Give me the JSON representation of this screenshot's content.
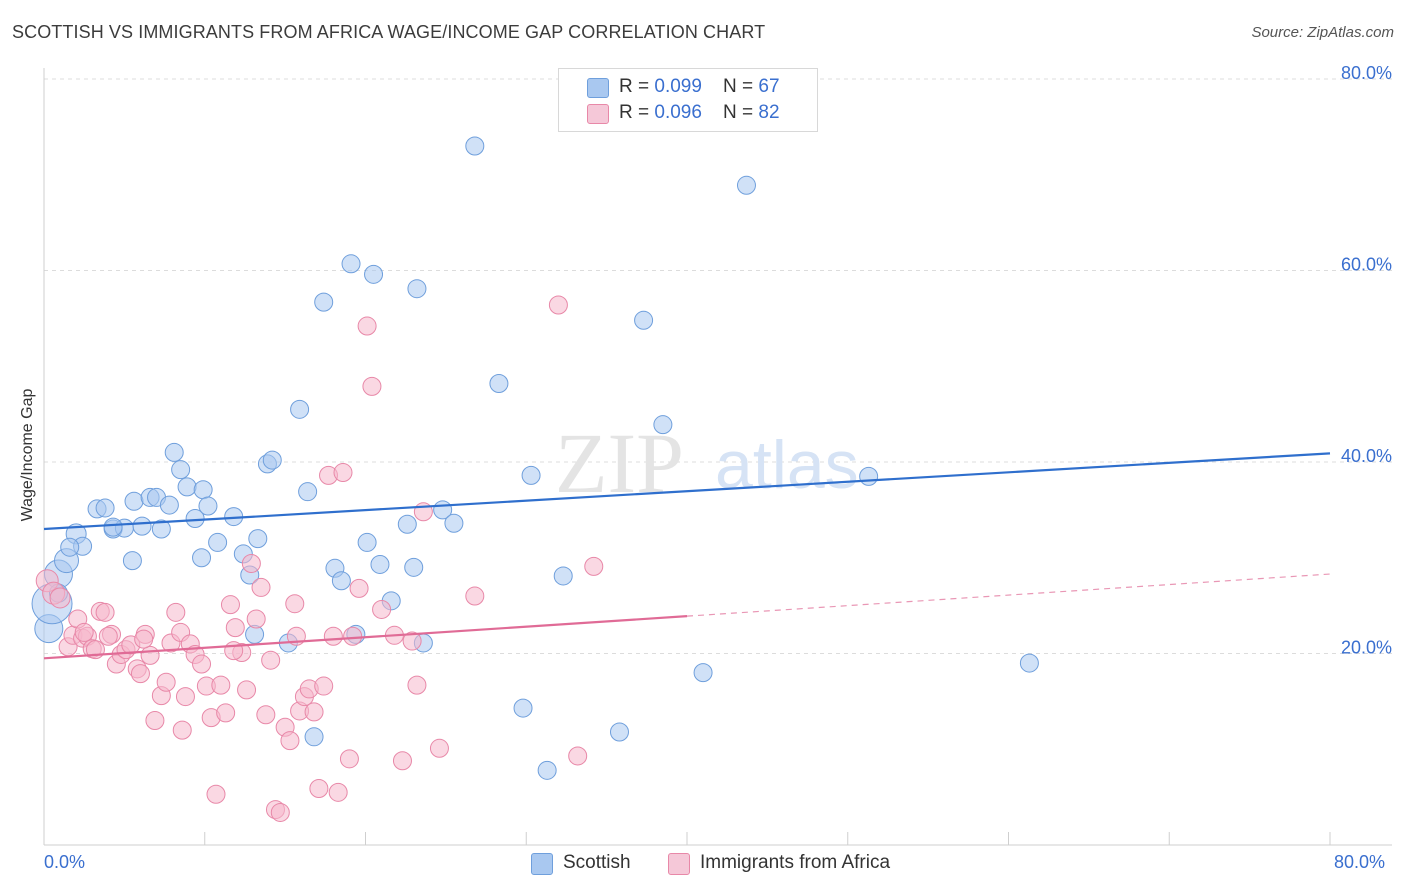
{
  "title": "SCOTTISH VS IMMIGRANTS FROM AFRICA WAGE/INCOME GAP CORRELATION CHART",
  "source": "Source: ZipAtlas.com",
  "watermark": {
    "zip": "ZIP",
    "atlas": "atlas"
  },
  "legend": {
    "series1": {
      "r_label": "R = ",
      "r_value": "0.099",
      "n_label": "N = ",
      "n_value": "67"
    },
    "series2": {
      "r_label": "R = ",
      "r_value": "0.096",
      "n_label": "N = ",
      "n_value": "82"
    }
  },
  "bottom_legend": [
    "Scottish",
    "Immigrants from Africa"
  ],
  "x_tick_labels": {
    "left": "0.0%",
    "right": "80.0%"
  },
  "colors": {
    "blue_fill": "#a9c8f0",
    "blue_stroke": "#6f9fdc",
    "blue_line": "#2f6fcd",
    "pink_fill": "#f5b8cc",
    "pink_stroke": "#e888a8",
    "pink_line": "#e06b96",
    "tick_text": "#3a6fcf",
    "grid": "#dcdcdc"
  },
  "chart_data": {
    "type": "scatter",
    "title": "SCOTTISH VS IMMIGRANTS FROM AFRICA WAGE/INCOME GAP CORRELATION CHART",
    "xlabel": "",
    "ylabel": "Wage/Income Gap",
    "xlim": [
      0,
      80
    ],
    "ylim": [
      0,
      80
    ],
    "y_ticks": [
      {
        "value": 20,
        "label": "20.0%"
      },
      {
        "value": 40,
        "label": "40.0%"
      },
      {
        "value": 60,
        "label": "60.0%"
      },
      {
        "value": 80,
        "label": "80.0%"
      }
    ],
    "x_ticks": [
      {
        "value": 0,
        "label": "0.0%"
      },
      {
        "value": 80,
        "label": "80.0%"
      }
    ],
    "series": [
      {
        "name": "Scottish",
        "color": "#6f9fdc",
        "trend": {
          "x0": 0,
          "y0": 33.0,
          "x1": 80,
          "y1": 40.9,
          "dashed_from": null
        },
        "points": [
          [
            0.3,
            22.6,
            14
          ],
          [
            0.5,
            25.2,
            20
          ],
          [
            0.9,
            28.3,
            14
          ],
          [
            1.4,
            29.7,
            12
          ],
          [
            2.0,
            32.5,
            10
          ],
          [
            2.4,
            31.2,
            9
          ],
          [
            3.3,
            35.1,
            9
          ],
          [
            3.8,
            35.2,
            9
          ],
          [
            4.3,
            33.0,
            9
          ],
          [
            5.0,
            33.1,
            9
          ],
          [
            5.6,
            35.9,
            9
          ],
          [
            6.1,
            33.3,
            9
          ],
          [
            6.6,
            36.3,
            9
          ],
          [
            7.0,
            36.3,
            9
          ],
          [
            7.3,
            33.0,
            9
          ],
          [
            7.8,
            35.5,
            9
          ],
          [
            8.1,
            41.0,
            9
          ],
          [
            8.5,
            39.2,
            9
          ],
          [
            8.9,
            37.4,
            9
          ],
          [
            9.4,
            34.1,
            9
          ],
          [
            9.9,
            37.1,
            9
          ],
          [
            10.2,
            35.4,
            9
          ],
          [
            10.8,
            31.6,
            9
          ],
          [
            11.8,
            34.3,
            9
          ],
          [
            12.4,
            30.4,
            9
          ],
          [
            12.8,
            28.2,
            9
          ],
          [
            13.3,
            32.0,
            9
          ],
          [
            13.9,
            39.8,
            9
          ],
          [
            14.2,
            40.2,
            9
          ],
          [
            15.2,
            21.1,
            9
          ],
          [
            15.9,
            45.5,
            9
          ],
          [
            16.4,
            36.9,
            9
          ],
          [
            16.8,
            11.3,
            9
          ],
          [
            17.4,
            56.7,
            9
          ],
          [
            18.1,
            28.9,
            9
          ],
          [
            18.5,
            27.6,
            9
          ],
          [
            19.1,
            60.7,
            9
          ],
          [
            20.1,
            31.6,
            9
          ],
          [
            20.5,
            59.6,
            9
          ],
          [
            20.9,
            29.3,
            9
          ],
          [
            21.6,
            25.5,
            9
          ],
          [
            22.6,
            33.5,
            9
          ],
          [
            23.2,
            58.1,
            9
          ],
          [
            23.6,
            21.1,
            9
          ],
          [
            24.8,
            35.0,
            9
          ],
          [
            25.5,
            33.6,
            9
          ],
          [
            26.8,
            73.0,
            9
          ],
          [
            28.3,
            48.2,
            9
          ],
          [
            29.8,
            14.3,
            9
          ],
          [
            30.3,
            38.6,
            9
          ],
          [
            31.3,
            7.8,
            9
          ],
          [
            32.3,
            28.1,
            9
          ],
          [
            35.8,
            11.8,
            9
          ],
          [
            37.3,
            54.8,
            9
          ],
          [
            38.5,
            43.9,
            9
          ],
          [
            41.0,
            18.0,
            9
          ],
          [
            43.7,
            68.9,
            9
          ],
          [
            51.3,
            38.5,
            9
          ],
          [
            61.3,
            19.0,
            9
          ],
          [
            4.3,
            33.2,
            9
          ],
          [
            1.6,
            31.1,
            9
          ],
          [
            0.9,
            26.3,
            9
          ],
          [
            5.5,
            29.7,
            9
          ],
          [
            19.4,
            22.0,
            9
          ],
          [
            13.1,
            22.0,
            9
          ],
          [
            23.0,
            29.0,
            9
          ],
          [
            9.8,
            30.0,
            9
          ]
        ]
      },
      {
        "name": "Immigrants from Africa",
        "color": "#e888a8",
        "trend": {
          "x0": 0,
          "y0": 19.5,
          "x1": 80,
          "y1": 28.3,
          "dashed_from": 40
        },
        "points": [
          [
            0.2,
            27.6,
            11
          ],
          [
            0.6,
            26.3,
            11
          ],
          [
            1.0,
            25.8,
            10
          ],
          [
            1.5,
            20.7,
            9
          ],
          [
            1.8,
            21.9,
            9
          ],
          [
            2.1,
            23.6,
            9
          ],
          [
            2.4,
            21.6,
            9
          ],
          [
            2.7,
            21.8,
            9
          ],
          [
            3.0,
            20.5,
            9
          ],
          [
            3.5,
            24.4,
            9
          ],
          [
            3.8,
            24.3,
            9
          ],
          [
            4.2,
            22.0,
            9
          ],
          [
            4.5,
            18.9,
            9
          ],
          [
            4.8,
            19.9,
            9
          ],
          [
            5.1,
            20.4,
            9
          ],
          [
            5.4,
            20.9,
            9
          ],
          [
            5.8,
            18.4,
            9
          ],
          [
            6.0,
            17.9,
            9
          ],
          [
            6.3,
            22.0,
            9
          ],
          [
            6.6,
            19.8,
            9
          ],
          [
            6.9,
            13.0,
            9
          ],
          [
            7.3,
            15.6,
            9
          ],
          [
            7.6,
            17.0,
            9
          ],
          [
            7.9,
            21.1,
            9
          ],
          [
            8.2,
            24.3,
            9
          ],
          [
            8.5,
            22.2,
            9
          ],
          [
            8.8,
            15.5,
            9
          ],
          [
            9.1,
            21.0,
            9
          ],
          [
            9.4,
            19.9,
            9
          ],
          [
            9.8,
            18.9,
            9
          ],
          [
            10.1,
            16.6,
            9
          ],
          [
            10.4,
            13.3,
            9
          ],
          [
            10.7,
            5.3,
            9
          ],
          [
            11.0,
            16.7,
            9
          ],
          [
            11.3,
            13.8,
            9
          ],
          [
            11.6,
            25.1,
            9
          ],
          [
            11.9,
            22.7,
            9
          ],
          [
            12.3,
            20.1,
            9
          ],
          [
            12.6,
            16.2,
            9
          ],
          [
            12.9,
            29.4,
            9
          ],
          [
            13.2,
            23.6,
            9
          ],
          [
            13.5,
            26.9,
            9
          ],
          [
            13.8,
            13.6,
            9
          ],
          [
            14.1,
            19.3,
            9
          ],
          [
            14.4,
            3.7,
            9
          ],
          [
            14.7,
            3.4,
            9
          ],
          [
            15.0,
            12.3,
            9
          ],
          [
            15.3,
            10.9,
            9
          ],
          [
            15.6,
            25.2,
            9
          ],
          [
            15.9,
            14.0,
            9
          ],
          [
            16.2,
            15.5,
            9
          ],
          [
            16.5,
            16.3,
            9
          ],
          [
            16.8,
            13.9,
            9
          ],
          [
            17.1,
            5.9,
            9
          ],
          [
            17.4,
            16.6,
            9
          ],
          [
            17.7,
            38.6,
            9
          ],
          [
            18.0,
            21.8,
            9
          ],
          [
            18.3,
            5.5,
            9
          ],
          [
            18.6,
            38.9,
            9
          ],
          [
            19.0,
            9.0,
            9
          ],
          [
            19.6,
            26.8,
            9
          ],
          [
            20.1,
            54.2,
            9
          ],
          [
            20.4,
            47.9,
            9
          ],
          [
            21.0,
            24.6,
            9
          ],
          [
            21.8,
            21.9,
            9
          ],
          [
            22.3,
            8.8,
            9
          ],
          [
            22.9,
            21.3,
            9
          ],
          [
            23.2,
            16.7,
            9
          ],
          [
            23.6,
            34.8,
            9
          ],
          [
            24.6,
            10.1,
            9
          ],
          [
            26.8,
            26.0,
            9
          ],
          [
            32.0,
            56.4,
            9
          ],
          [
            33.2,
            9.3,
            9
          ],
          [
            34.2,
            29.1,
            9
          ],
          [
            2.5,
            22.2,
            9
          ],
          [
            4.0,
            21.8,
            9
          ],
          [
            6.2,
            21.5,
            9
          ],
          [
            11.8,
            20.3,
            9
          ],
          [
            15.7,
            21.8,
            9
          ],
          [
            19.2,
            21.8,
            9
          ],
          [
            8.6,
            12.0,
            9
          ],
          [
            3.2,
            20.4,
            9
          ]
        ]
      }
    ]
  }
}
